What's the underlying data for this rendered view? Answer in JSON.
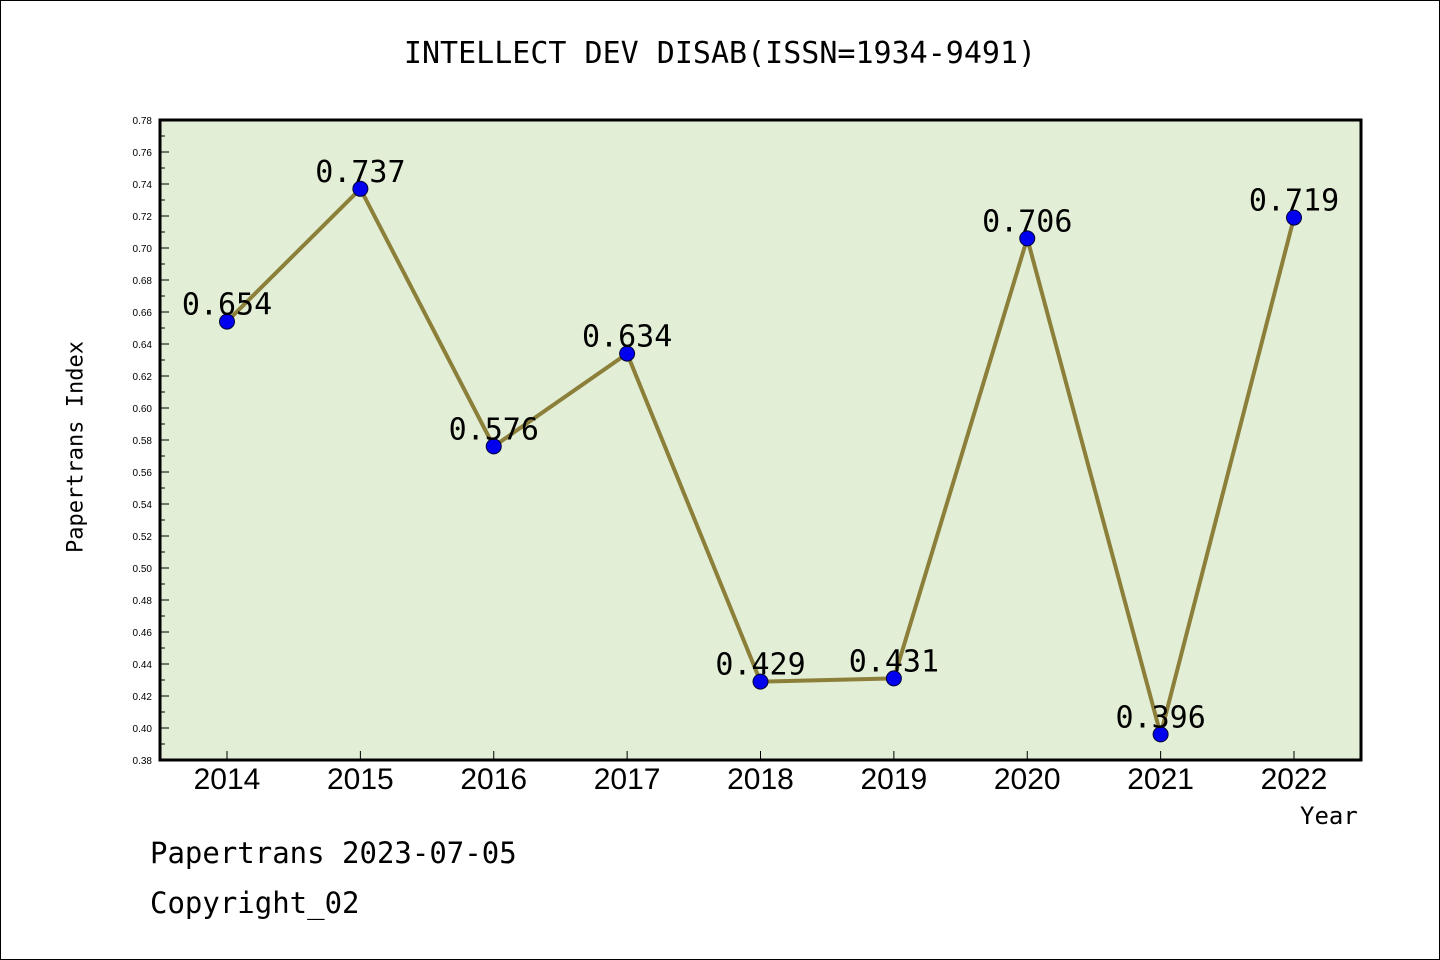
{
  "chart_data": {
    "type": "line",
    "title": "INTELLECT DEV DISAB(ISSN=1934-9491)",
    "xlabel": "Year",
    "ylabel": "Papertrans Index",
    "categories": [
      "2014",
      "2015",
      "2016",
      "2017",
      "2018",
      "2019",
      "2020",
      "2021",
      "2022"
    ],
    "values": [
      0.654,
      0.737,
      0.576,
      0.634,
      0.429,
      0.431,
      0.706,
      0.396,
      0.719
    ],
    "data_labels": [
      "0.654",
      "0.737",
      "0.576",
      "0.634",
      "0.429",
      "0.431",
      "0.706",
      "0.396",
      "0.719"
    ],
    "ylim": [
      0.38,
      0.78
    ],
    "yticks": [
      "0.38",
      "0.40",
      "0.42",
      "0.44",
      "0.46",
      "0.48",
      "0.50",
      "0.52",
      "0.54",
      "0.56",
      "0.58",
      "0.60",
      "0.62",
      "0.64",
      "0.66",
      "0.68",
      "0.70",
      "0.72",
      "0.74",
      "0.76",
      "0.78"
    ],
    "grid": false,
    "legend": "none",
    "colors": {
      "plot_background": "#e2efd6",
      "line": "#8b7f3a",
      "marker": "#0000ee",
      "axis": "#000000"
    }
  },
  "footer": {
    "line1": "Papertrans 2023-07-05",
    "line2": "Copyright_02"
  }
}
